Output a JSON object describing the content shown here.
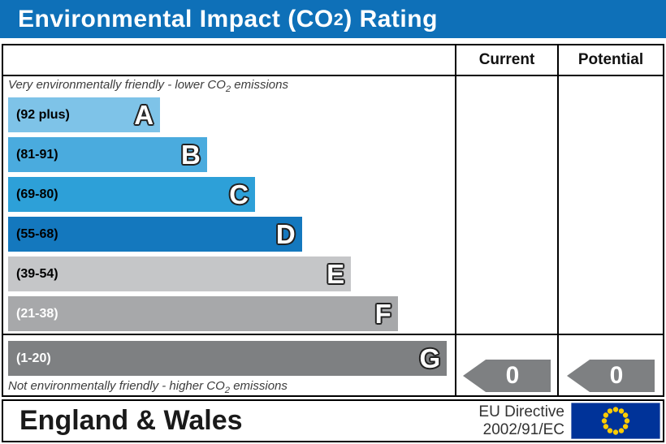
{
  "title": {
    "prefix": "Environmental Impact (CO",
    "sub": "2",
    "suffix": ") Rating"
  },
  "table": {
    "columns": {
      "current": "Current",
      "potential": "Potential"
    },
    "top_note": {
      "prefix": "Very environmentally friendly - lower CO",
      "sub": "2",
      "suffix": " emissions"
    },
    "bottom_note": {
      "prefix": "Not environmentally friendly - higher CO",
      "sub": "2",
      "suffix": " emissions"
    }
  },
  "chart_data": {
    "type": "bar",
    "title": "Environmental Impact (CO2) Rating",
    "bands": [
      {
        "letter": "A",
        "range": "(92 plus)",
        "color": "#7ec3e8",
        "text_color": "#000000",
        "width_pct": 34.4
      },
      {
        "letter": "B",
        "range": "(81-91)",
        "color": "#4aabde",
        "text_color": "#000000",
        "width_pct": 45.0
      },
      {
        "letter": "C",
        "range": "(69-80)",
        "color": "#2da0d8",
        "text_color": "#000000",
        "width_pct": 55.9
      },
      {
        "letter": "D",
        "range": "(55-68)",
        "color": "#1478be",
        "text_color": "#000000",
        "width_pct": 66.5
      },
      {
        "letter": "E",
        "range": "(39-54)",
        "color": "#c5c6c8",
        "text_color": "#000000",
        "width_pct": 77.6
      },
      {
        "letter": "F",
        "range": "(21-38)",
        "color": "#a7a8aa",
        "text_color": "#ffffff",
        "width_pct": 88.2
      },
      {
        "letter": "G",
        "range": "(1-20)",
        "color": "#7e8082",
        "text_color": "#ffffff",
        "width_pct": 99.3
      }
    ],
    "current": {
      "value": "0"
    },
    "potential": {
      "value": "0"
    }
  },
  "footer": {
    "region": "England & Wales",
    "directive_line1": "EU Directive",
    "directive_line2": "2002/91/EC"
  },
  "colors": {
    "title_bar_bg": "#0e70b8",
    "title_text": "#ffffff",
    "border": "#000000",
    "arrow": "#7e8082",
    "flag_bg": "#003399",
    "flag_star": "#ffcc00",
    "note_text": "#3c3c3c",
    "footer_text": "#1a1a1a"
  }
}
